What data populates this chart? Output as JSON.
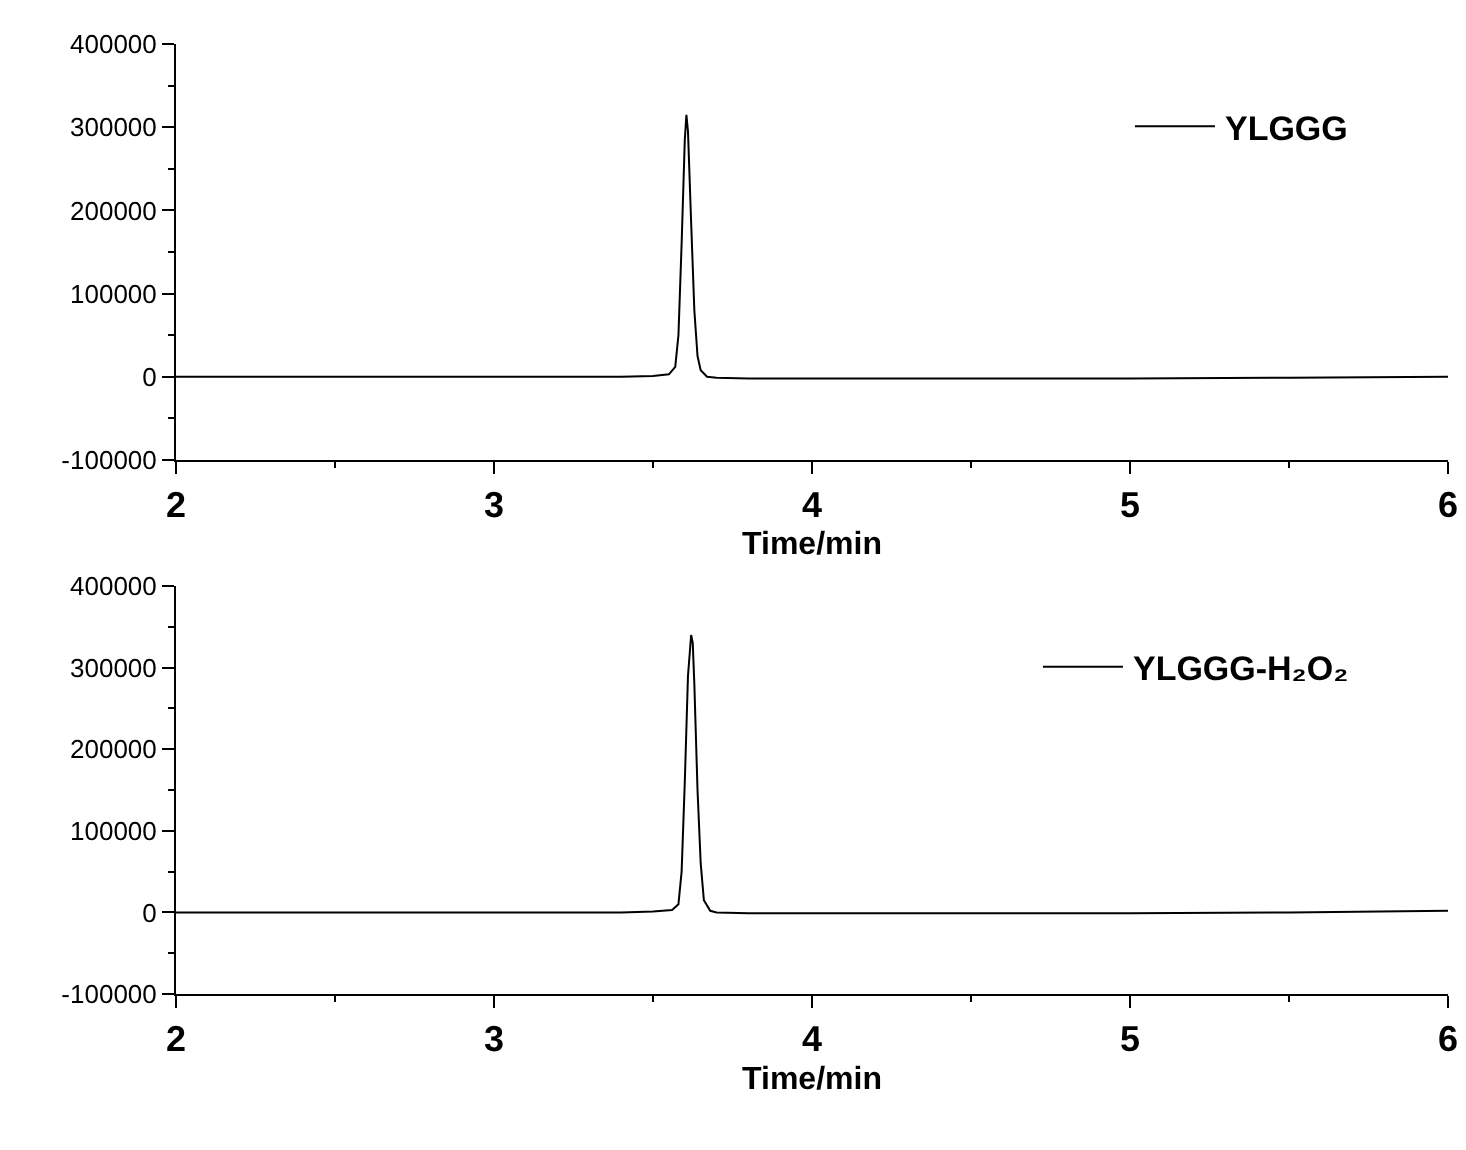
{
  "chart_data": [
    {
      "type": "line",
      "xlabel": "Time/min",
      "xlim": [
        2,
        6
      ],
      "xticks": [
        2,
        3,
        4,
        5,
        6
      ],
      "ylim": [
        -100000,
        400000
      ],
      "yticks": [
        -100000,
        0,
        100000,
        200000,
        300000,
        400000
      ],
      "grid": false,
      "legend": "top right",
      "marker": "none",
      "line_style": "solid",
      "series": [
        {
          "name": "YLGGG",
          "color": "#000000",
          "x": [
            2,
            2.5,
            3,
            3.4,
            3.5,
            3.55,
            3.57,
            3.58,
            3.59,
            3.6,
            3.605,
            3.61,
            3.62,
            3.63,
            3.64,
            3.65,
            3.67,
            3.7,
            3.8,
            4.2,
            5,
            5.5,
            6
          ],
          "values": [
            0,
            0,
            0,
            0,
            1000,
            3000,
            12000,
            50000,
            160000,
            285000,
            315000,
            295000,
            185000,
            80000,
            25000,
            8000,
            0,
            -1000,
            -2000,
            -2000,
            -2000,
            -1000,
            0
          ]
        }
      ]
    },
    {
      "type": "line",
      "xlabel": "Time/min",
      "xlim": [
        2,
        6
      ],
      "xticks": [
        2,
        3,
        4,
        5,
        6
      ],
      "ylim": [
        -100000,
        400000
      ],
      "yticks": [
        -100000,
        0,
        100000,
        200000,
        300000,
        400000
      ],
      "grid": false,
      "legend": "top right",
      "marker": "none",
      "line_style": "solid",
      "series": [
        {
          "name": "YLGGG-H₂O₂",
          "color": "#000000",
          "x": [
            2,
            2.5,
            3,
            3.4,
            3.5,
            3.56,
            3.58,
            3.59,
            3.6,
            3.61,
            3.62,
            3.625,
            3.63,
            3.64,
            3.65,
            3.66,
            3.68,
            3.7,
            3.8,
            4.2,
            5,
            5.5,
            6
          ],
          "values": [
            0,
            0,
            0,
            0,
            1000,
            3000,
            10000,
            50000,
            160000,
            290000,
            340000,
            330000,
            280000,
            150000,
            60000,
            15000,
            2000,
            0,
            -1000,
            -1000,
            -1000,
            0,
            2000
          ]
        }
      ]
    }
  ]
}
